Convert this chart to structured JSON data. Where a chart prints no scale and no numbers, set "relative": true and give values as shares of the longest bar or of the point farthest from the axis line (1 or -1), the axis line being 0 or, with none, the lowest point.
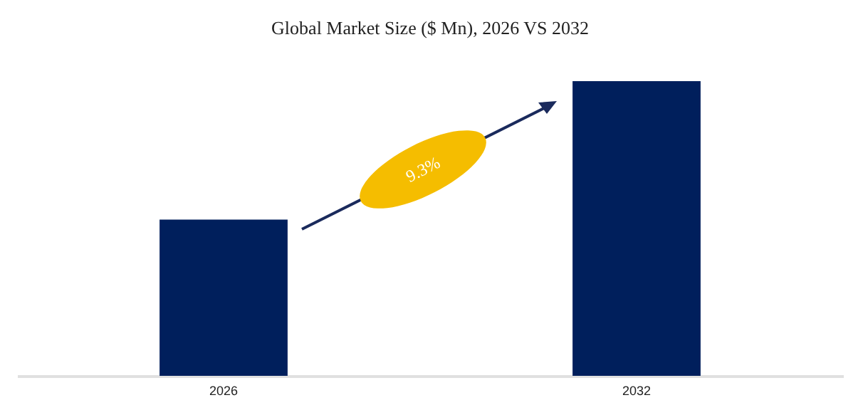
{
  "chart_data": {
    "type": "bar",
    "title": "Global Market Size ($ Mn), 2026 VS 2032",
    "categories": [
      "2026",
      "2032"
    ],
    "values": [
      0.53,
      1
    ],
    "color": "#001f5c",
    "relative": true,
    "annotations": [
      "9.3%"
    ]
  }
}
